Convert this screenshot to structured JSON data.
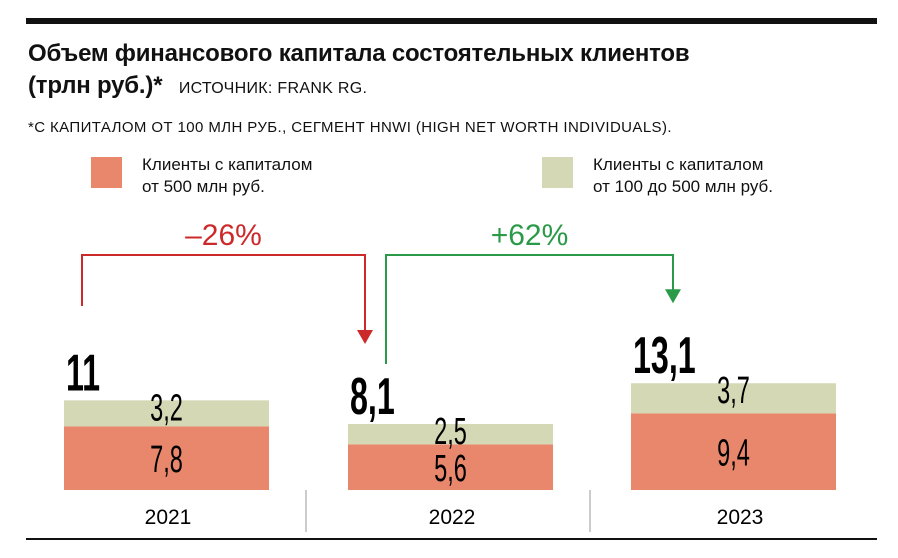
{
  "title_line1": "Объем финансового капитала состоятельных клиентов",
  "title_line2": "(трлн руб.)*",
  "source": "ИСТОЧНИК: FRANK RG.",
  "footnote": "*С КАПИТАЛОМ ОТ 100 МЛН РУБ., СЕГМЕНТ HNWI (HIGH NET WORTH INDIVIDUALS).",
  "legend": [
    {
      "line1": "Клиенты с капиталом",
      "line2": "от 500 млн руб.",
      "color": "#e8876b"
    },
    {
      "line1": "Клиенты с капиталом",
      "line2": "от 100 до 500 млн руб.",
      "color": "#d4d8b4"
    }
  ],
  "changes": [
    {
      "label": "–26%",
      "color": "#cc2a2a"
    },
    {
      "label": "+62%",
      "color": "#2a9a48"
    }
  ],
  "chart_data": {
    "type": "bar",
    "stacked": true,
    "categories": [
      "2021",
      "2022",
      "2023"
    ],
    "series": [
      {
        "name": "Клиенты с капиталом от 500 млн руб.",
        "values": [
          7.8,
          5.6,
          9.4
        ],
        "labels": [
          "7,8",
          "5,6",
          "9,4"
        ],
        "color": "#e8876b"
      },
      {
        "name": "Клиенты с капиталом от 100 до 500 млн руб.",
        "values": [
          3.2,
          2.5,
          3.7
        ],
        "labels": [
          "3,2",
          "2,5",
          "3,7"
        ],
        "color": "#d4d8b4"
      }
    ],
    "totals": [
      11,
      8.1,
      13.1
    ],
    "total_labels": [
      "11",
      "8,1",
      "13,1"
    ]
  }
}
